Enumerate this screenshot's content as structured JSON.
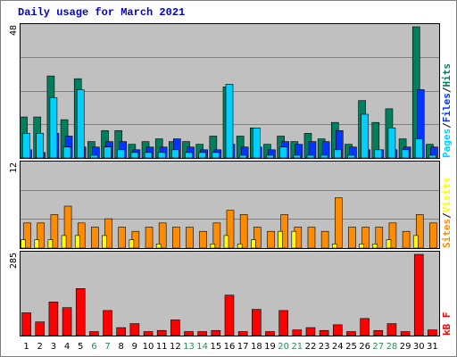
{
  "title": "Daily usage for March 2021",
  "colors": {
    "background": "#c0c0c0",
    "hits": "#007f5f",
    "files": "#0036ff",
    "pages": "#00cfff",
    "visits": "#ffff00",
    "sites": "#ff8c00",
    "kbytes": "#ff0000",
    "weekend_label": "#2e8b57"
  },
  "chart_data": [
    {
      "type": "bar",
      "panel": "hits-files-pages",
      "ymax_label": "48",
      "ylim": [
        0,
        48
      ],
      "categories": [
        "1",
        "2",
        "3",
        "4",
        "5",
        "6",
        "7",
        "8",
        "9",
        "10",
        "11",
        "12",
        "13",
        "14",
        "15",
        "16",
        "17",
        "18",
        "19",
        "20",
        "21",
        "22",
        "23",
        "24",
        "25",
        "26",
        "27",
        "28",
        "29",
        "30",
        "31"
      ],
      "weekend_days": [
        "6",
        "7",
        "13",
        "14",
        "20",
        "21",
        "27",
        "28"
      ],
      "y_axis_labels": [
        "Pages",
        "/",
        "Files",
        "/",
        "Hits"
      ],
      "series": [
        {
          "name": "Hits",
          "color": "#007f5f",
          "values": [
            15,
            15,
            30,
            14,
            29,
            6,
            10,
            10,
            5,
            6,
            7,
            6,
            6,
            5,
            8,
            26,
            8,
            11,
            5,
            8,
            6,
            9,
            7,
            13,
            5,
            21,
            13,
            18,
            7,
            48,
            5
          ]
        },
        {
          "name": "Files",
          "color": "#0036ff",
          "values": [
            3,
            2,
            9,
            8,
            4,
            4,
            6,
            6,
            3,
            4,
            4,
            7,
            4,
            3,
            3,
            5,
            4,
            4,
            3,
            6,
            5,
            6,
            6,
            10,
            4,
            3,
            3,
            3,
            4,
            25,
            4
          ]
        },
        {
          "name": "Pages",
          "color": "#00cfff",
          "values": [
            9,
            9,
            22,
            4,
            25,
            1,
            4,
            3,
            2,
            2,
            2,
            3,
            2,
            2,
            2,
            27,
            1,
            11,
            1,
            4,
            1,
            1,
            1,
            3,
            1,
            16,
            3,
            11,
            3,
            7,
            1
          ]
        }
      ]
    },
    {
      "type": "bar",
      "panel": "visits-sites",
      "ymax_label": "12",
      "ylim": [
        0,
        12
      ],
      "categories": [
        "1",
        "2",
        "3",
        "4",
        "5",
        "6",
        "7",
        "8",
        "9",
        "10",
        "11",
        "12",
        "13",
        "14",
        "15",
        "16",
        "17",
        "18",
        "19",
        "20",
        "21",
        "22",
        "23",
        "24",
        "25",
        "26",
        "27",
        "28",
        "29",
        "30",
        "31"
      ],
      "y_axis_labels": [
        "Sites",
        "/",
        "Visits"
      ],
      "series": [
        {
          "name": "Visits",
          "color": "#ffff00",
          "values": [
            1.2,
            1.2,
            1.2,
            1.8,
            1.8,
            0,
            1.8,
            0,
            1.2,
            0,
            0.6,
            0,
            0,
            0,
            0.6,
            1.8,
            0.6,
            1.2,
            0,
            2.4,
            2.4,
            0,
            0,
            0.6,
            0,
            0.6,
            0.6,
            1.2,
            0,
            1.8,
            0
          ]
        },
        {
          "name": "Sites",
          "color": "#ff8c00",
          "values": [
            3.6,
            3.6,
            4.8,
            6.0,
            3.6,
            3.0,
            4.2,
            3.0,
            2.4,
            3.0,
            3.6,
            3.0,
            3.0,
            2.4,
            3.6,
            5.4,
            4.8,
            3.0,
            2.4,
            4.8,
            3.0,
            3.0,
            2.4,
            7.2,
            3.0,
            3.0,
            3.0,
            3.6,
            2.4,
            4.8,
            3.6
          ]
        }
      ]
    },
    {
      "type": "bar",
      "panel": "kbytes",
      "ymax_label": "285",
      "ylim": [
        0,
        285
      ],
      "categories": [
        "1",
        "2",
        "3",
        "4",
        "5",
        "6",
        "7",
        "8",
        "9",
        "10",
        "11",
        "12",
        "13",
        "14",
        "15",
        "16",
        "17",
        "18",
        "19",
        "20",
        "21",
        "22",
        "23",
        "24",
        "25",
        "26",
        "27",
        "28",
        "29",
        "30",
        "31"
      ],
      "y_axis_labels": [
        "kB",
        "F"
      ],
      "series": [
        {
          "name": "kB F",
          "color": "#ff0000",
          "values": [
            80,
            48,
            118,
            98,
            165,
            14,
            88,
            28,
            42,
            14,
            18,
            55,
            14,
            14,
            18,
            142,
            14,
            92,
            14,
            88,
            20,
            28,
            18,
            38,
            14,
            60,
            18,
            42,
            14,
            285,
            20
          ]
        }
      ]
    }
  ]
}
